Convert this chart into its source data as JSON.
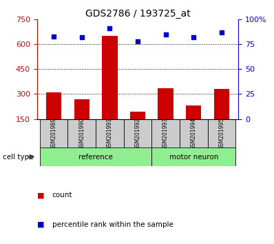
{
  "title": "GDS2786 / 193725_at",
  "samples": [
    "GSM201989",
    "GSM201990",
    "GSM201991",
    "GSM201992",
    "GSM201993",
    "GSM201994",
    "GSM201995"
  ],
  "counts": [
    310,
    270,
    650,
    195,
    335,
    230,
    330
  ],
  "percentile_ranks": [
    83,
    82,
    91,
    78,
    85,
    82,
    87
  ],
  "bar_color": "#CC0000",
  "dot_color": "#0000CC",
  "left_ylim": [
    150,
    750
  ],
  "left_yticks": [
    150,
    300,
    450,
    600,
    750
  ],
  "right_ylim": [
    0,
    100
  ],
  "right_yticks": [
    0,
    25,
    50,
    75,
    100
  ],
  "right_yticklabels": [
    "0",
    "25",
    "50",
    "75",
    "100%"
  ],
  "left_axis_color": "#CC0000",
  "right_axis_color": "#0000CC",
  "grid_ticks": [
    300,
    450,
    600
  ],
  "bg_color": "#ffffff",
  "sample_cell_color": "#cccccc",
  "group_color": "#90EE90",
  "reference_count": 4,
  "motor_neuron_count": 3,
  "legend_count_label": "count",
  "legend_percentile_label": "percentile rank within the sample",
  "cell_type_label": "cell type"
}
